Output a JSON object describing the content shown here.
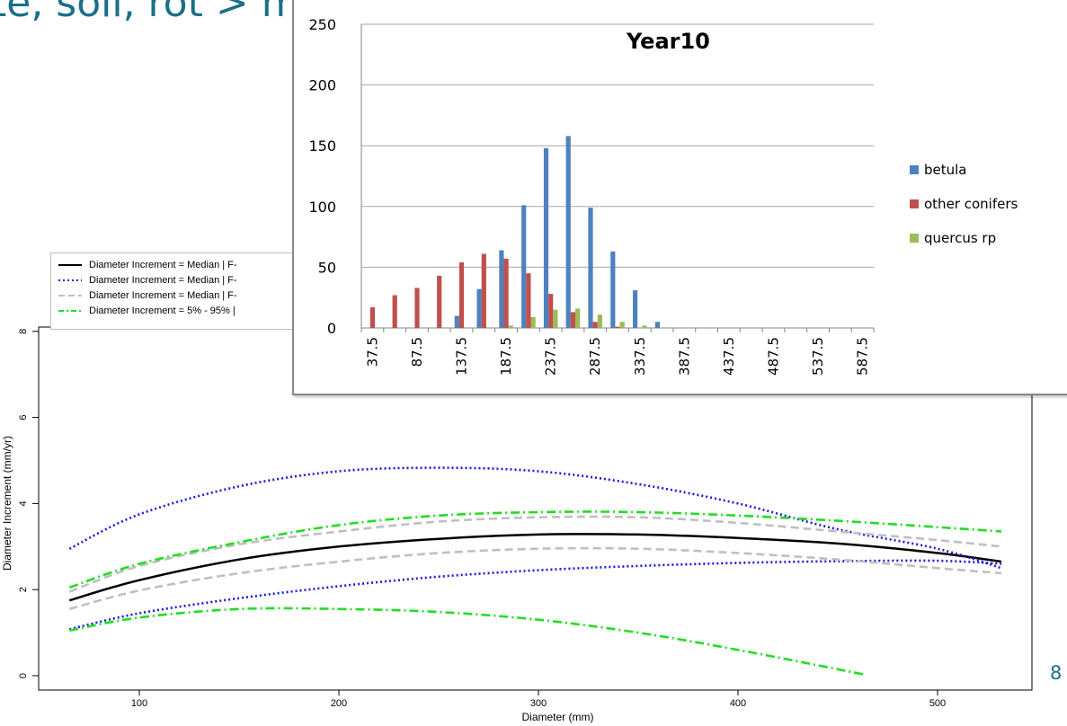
{
  "slide": {
    "title": "te, soil, rot > mm r.r.",
    "page_number": "8"
  },
  "chart_data": [
    {
      "type": "line",
      "title": "",
      "xlabel": "Diameter (mm)",
      "ylabel": "Diameter Increment (mm/yr)",
      "xlim": [
        40,
        540
      ],
      "ylim": [
        -0.2,
        8
      ],
      "xticks": [
        100,
        200,
        300,
        400,
        500
      ],
      "yticks": [
        0,
        2,
        4,
        6,
        8
      ],
      "legend_position": "top-left",
      "legend": [
        "Diameter Increment = Median | F-",
        "Diameter Increment = Median  | F-",
        "Diameter Increment = Median  | F-",
        "Diameter Increment = 5% - 95% |"
      ],
      "series": [
        {
          "legend_index": 0,
          "style": "solid",
          "color": "#000000",
          "x": [
            65,
            100,
            150,
            200,
            250,
            300,
            350,
            400,
            450,
            500,
            532
          ],
          "y": [
            1.75,
            2.22,
            2.7,
            3.0,
            3.18,
            3.28,
            3.28,
            3.2,
            3.07,
            2.85,
            2.65
          ]
        },
        {
          "legend_index": 1,
          "style": "dotted",
          "color": "#1a1ae0",
          "x": [
            65,
            100,
            150,
            200,
            250,
            300,
            350,
            400,
            450,
            500,
            532
          ],
          "y": [
            2.95,
            3.75,
            4.4,
            4.75,
            4.83,
            4.75,
            4.45,
            4.0,
            3.4,
            2.95,
            2.5
          ]
        },
        {
          "legend_index": 1,
          "style": "dotted",
          "color": "#1a1ae0",
          "x": [
            65,
            100,
            150,
            200,
            250,
            300,
            350,
            400,
            450,
            500,
            532
          ],
          "y": [
            1.08,
            1.45,
            1.8,
            2.08,
            2.3,
            2.45,
            2.55,
            2.62,
            2.66,
            2.67,
            2.6
          ]
        },
        {
          "legend_index": 2,
          "style": "dashed",
          "color": "#bfbfbf",
          "x": [
            65,
            100,
            150,
            200,
            250,
            300,
            350,
            400,
            450,
            500,
            532
          ],
          "y": [
            1.95,
            2.55,
            3.05,
            3.35,
            3.58,
            3.68,
            3.68,
            3.55,
            3.35,
            3.15,
            3.0
          ]
        },
        {
          "legend_index": 2,
          "style": "dashed",
          "color": "#bfbfbf",
          "x": [
            65,
            100,
            150,
            200,
            250,
            300,
            350,
            400,
            450,
            500,
            532
          ],
          "y": [
            1.55,
            1.98,
            2.38,
            2.65,
            2.85,
            2.95,
            2.95,
            2.85,
            2.7,
            2.5,
            2.38
          ]
        },
        {
          "legend_index": 3,
          "style": "dashdot",
          "color": "#22dd22",
          "x": [
            65,
            100,
            150,
            200,
            250,
            300,
            350,
            400,
            450,
            500,
            532
          ],
          "y": [
            2.05,
            2.6,
            3.1,
            3.5,
            3.72,
            3.8,
            3.8,
            3.72,
            3.6,
            3.45,
            3.35
          ]
        },
        {
          "legend_index": 3,
          "style": "dashdot",
          "color": "#22dd22",
          "x": [
            65,
            100,
            150,
            200,
            250,
            300,
            350,
            400,
            463
          ],
          "y": [
            1.05,
            1.35,
            1.55,
            1.55,
            1.48,
            1.3,
            1.0,
            0.6,
            0.03
          ]
        }
      ]
    },
    {
      "type": "bar",
      "title": "Year10",
      "ylim": [
        0,
        250
      ],
      "yticks": [
        0,
        50,
        100,
        150,
        200,
        250
      ],
      "legend_position": "right",
      "categories": [
        "37.5",
        "62.5",
        "87.5",
        "112.5",
        "137.5",
        "162.5",
        "187.5",
        "212.5",
        "237.5",
        "262.5",
        "287.5",
        "312.5",
        "337.5",
        "362.5",
        "387.5",
        "412.5",
        "437.5",
        "462.5",
        "487.5",
        "512.5",
        "537.5",
        "562.5",
        "587.5"
      ],
      "tick_labels": [
        "37.5",
        "87.5",
        "137.5",
        "187.5",
        "237.5",
        "287.5",
        "337.5",
        "387.5",
        "437.5",
        "487.5",
        "537.5",
        "587.5"
      ],
      "series": [
        {
          "name": "betula",
          "color": "#4f81bd",
          "values": [
            0,
            0,
            0,
            0,
            10,
            32,
            64,
            101,
            148,
            158,
            99,
            63,
            31,
            5,
            0,
            0,
            0,
            0,
            0,
            0,
            0,
            0,
            0
          ]
        },
        {
          "name": "other conifers",
          "color": "#c0504d",
          "values": [
            17,
            27,
            33,
            43,
            54,
            61,
            57,
            45,
            28,
            13,
            5,
            1,
            0,
            0,
            0,
            0,
            0,
            0,
            0,
            0,
            0,
            0,
            0
          ]
        },
        {
          "name": "quercus rp",
          "color": "#9bbb59",
          "values": [
            0,
            0,
            0,
            0,
            0,
            0,
            2,
            9,
            15,
            16,
            11,
            5,
            2,
            0,
            0,
            0,
            0,
            0,
            0,
            0,
            0,
            0,
            0
          ]
        }
      ]
    }
  ]
}
